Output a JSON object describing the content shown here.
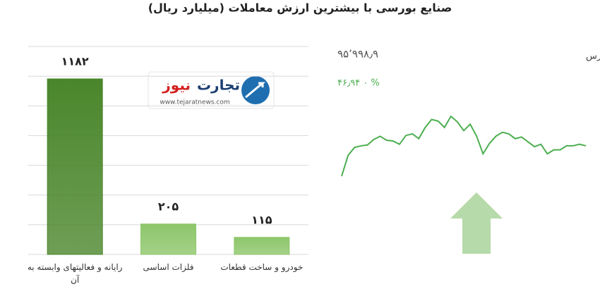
{
  "chart_data": {
    "type": "bar",
    "title": "صنایع بورسی با بیشترین ارزش معاملات  (میلیارد ریال)",
    "categories": [
      "رایانه و فعالیتهای وابسته به آن",
      "فلزات اساسی",
      "خودرو و ساخت قطعات"
    ],
    "values": [
      1182,
      205,
      115
    ],
    "value_labels": [
      "۱۱۸۲",
      "۲۰۵",
      "۱۱۵"
    ],
    "colors": [
      "#4a862b",
      "#8dc66a",
      "#8dc66a"
    ],
    "ylim": [
      0,
      1400
    ],
    "yticks": [
      0,
      200,
      400,
      600,
      800,
      1000,
      1200,
      1400
    ],
    "grid": true
  },
  "logo": {
    "name_part1": "تجارت",
    "name_part2": "نیوز",
    "url": "www.tejaratnews.com"
  },
  "index_widget": {
    "name": "کل بورس",
    "level": "۹۵’۹۹۸٫۹",
    "change": "۴۶٫۹۴  ۰ %",
    "color": "#4caf50",
    "sparkline": [
      4,
      30,
      40,
      42,
      43,
      50,
      54,
      49,
      48,
      44,
      55,
      57,
      51,
      65,
      75,
      73,
      65,
      79,
      72,
      61,
      69,
      54,
      32,
      45,
      54,
      59,
      57,
      51,
      53,
      47,
      41,
      44,
      32,
      37,
      37,
      42,
      42,
      44,
      42
    ]
  }
}
